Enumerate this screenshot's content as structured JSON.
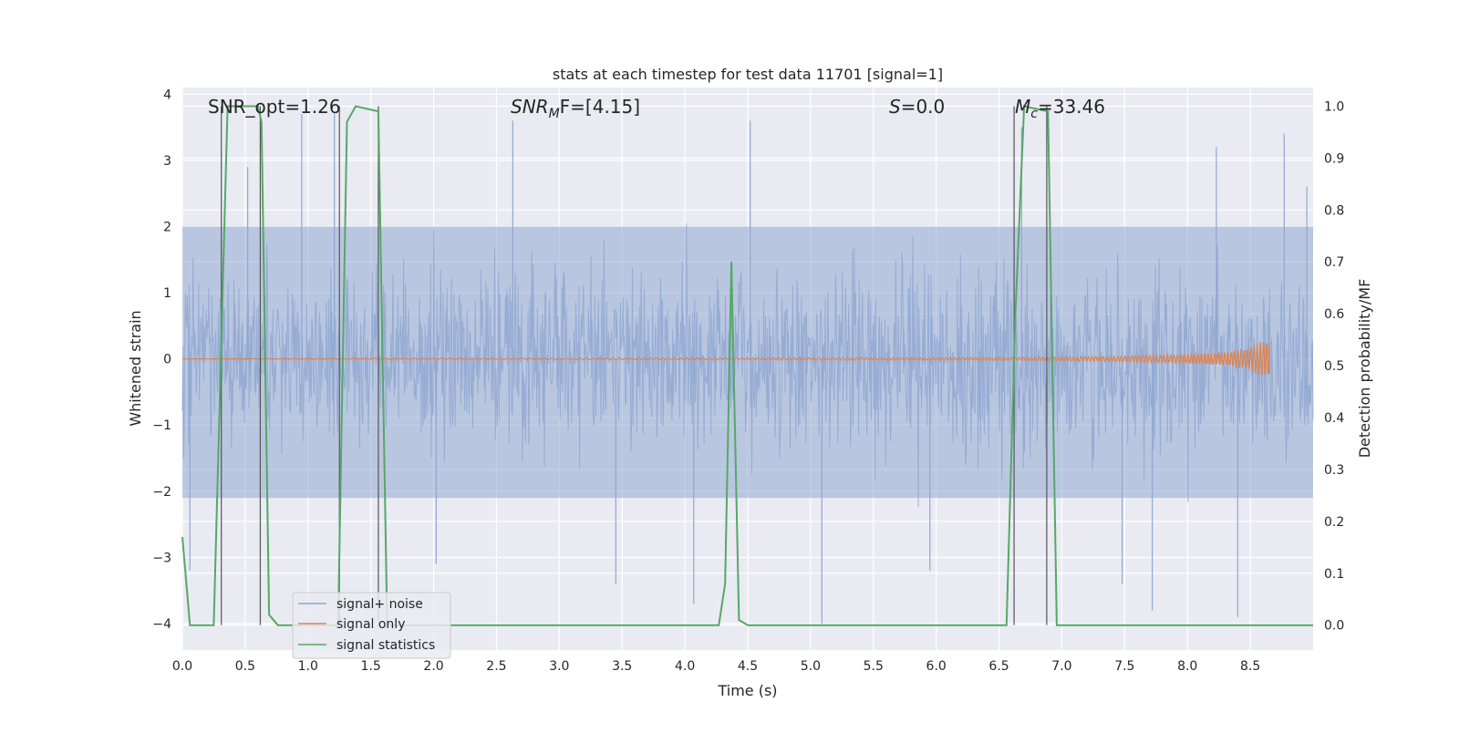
{
  "chart_data": {
    "type": "line",
    "title": "stats at each timestep for test data 11701 [signal=1]",
    "xlabel": "Time (s)",
    "ylabel": "Whitened strain",
    "ylabel_right": "Detection probability/MF",
    "xlim": [
      0.0,
      9.0
    ],
    "ylim": [
      -4.4,
      4.1
    ],
    "ylim_right": [
      -0.048,
      1.036
    ],
    "xticks": [
      "0.0",
      "0.5",
      "1.0",
      "1.5",
      "2.0",
      "2.5",
      "3.0",
      "3.5",
      "4.0",
      "4.5",
      "5.0",
      "5.5",
      "6.0",
      "6.5",
      "7.0",
      "7.5",
      "8.0",
      "8.5"
    ],
    "yticks_left": [
      "4",
      "3",
      "2",
      "1",
      "0",
      "−1",
      "−2",
      "−3",
      "−4"
    ],
    "yticks_right": [
      "1.0",
      "0.9",
      "0.8",
      "0.7",
      "0.6",
      "0.5",
      "0.4",
      "0.3",
      "0.2",
      "0.1",
      "0.0"
    ],
    "grid": true,
    "legend_position": "lower-left",
    "annotations": {
      "snr_opt": "SNR_opt=1.26",
      "snr_mf": {
        "main": "SNR",
        "sub": "M",
        "rest": "F=[4.15]"
      },
      "s": {
        "sym": "S",
        "rest": "=0.0"
      },
      "mc": {
        "sym": "M",
        "sub": "c",
        "rest": "=33.46"
      }
    },
    "series": [
      {
        "name": "signal+ noise",
        "color": "#8fa7d1",
        "description_values": "dense noise band between about -2.1 and 2.0 with spikes reaching about ±3.7",
        "noise_band": [
          -2.1,
          2.0
        ],
        "spikes": [
          [
            0.52,
            2.9
          ],
          [
            0.95,
            3.7
          ],
          [
            1.21,
            3.7
          ],
          [
            2.02,
            -3.1
          ],
          [
            2.63,
            3.6
          ],
          [
            3.45,
            -3.4
          ],
          [
            4.07,
            -3.7
          ],
          [
            4.52,
            3.6
          ],
          [
            5.09,
            -4.0
          ],
          [
            5.95,
            -3.2
          ],
          [
            6.68,
            3.5
          ],
          [
            7.48,
            -3.4
          ],
          [
            7.72,
            -3.8
          ],
          [
            8.23,
            3.2
          ],
          [
            8.4,
            -3.9
          ],
          [
            8.77,
            3.4
          ],
          [
            0.06,
            -3.2
          ],
          [
            8.95,
            2.6
          ]
        ]
      },
      {
        "name": "signal only",
        "color": "#dd8452",
        "values_note": "near zero, chirp growing to ±0.3 near t=8.6",
        "x": [
          0.0,
          6.5,
          7.5,
          8.0,
          8.3,
          8.5,
          8.6,
          8.66
        ],
        "amp": [
          0.0,
          0.02,
          0.04,
          0.07,
          0.1,
          0.18,
          0.28,
          0.32
        ]
      },
      {
        "name": "signal statistics",
        "color": "#55a868",
        "x": [
          0.0,
          0.06,
          0.25,
          0.36,
          0.6,
          0.63,
          0.69,
          0.76,
          1.24,
          1.31,
          1.38,
          1.56,
          1.63,
          4.27,
          4.32,
          4.37,
          4.43,
          4.5,
          6.56,
          6.63,
          6.7,
          6.89,
          6.96,
          9.0
        ],
        "y": [
          0.17,
          0.0,
          0.0,
          1.0,
          1.0,
          0.97,
          0.02,
          0.0,
          0.0,
          0.97,
          1.0,
          0.99,
          0.0,
          0.0,
          0.08,
          0.7,
          0.01,
          0.0,
          0.0,
          0.6,
          1.0,
          0.99,
          0.0,
          0.0
        ]
      }
    ],
    "vertical_markers": {
      "color": "#555555",
      "x": [
        0.31,
        0.62,
        1.25,
        1.56,
        6.62,
        6.88
      ],
      "y_range_right": [
        0.0,
        1.0
      ]
    }
  }
}
